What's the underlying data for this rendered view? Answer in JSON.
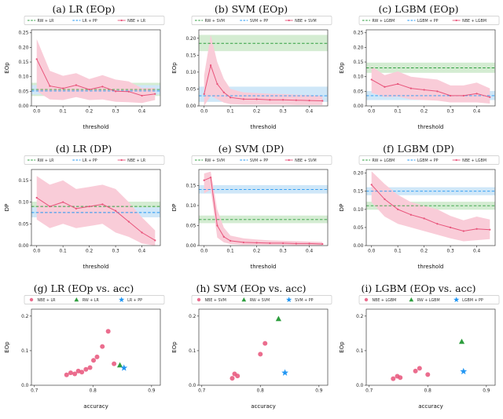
{
  "colors": {
    "green": "#2e9e3e",
    "green_band": "#d4ecd2",
    "blue": "#2196f3",
    "blue_band": "#cfe7f8",
    "pink": "#e8537a",
    "pink_band": "#f9ccd8"
  },
  "chart_data": [
    {
      "id": "a",
      "panel_type": "line",
      "title": "(a) LR (EOp)",
      "xlabel": "threshold",
      "ylabel": "EOp",
      "xlim": [
        -0.02,
        0.47
      ],
      "ylim": [
        0,
        0.26
      ],
      "xticks": [
        0.0,
        0.1,
        0.2,
        0.3,
        0.4
      ],
      "xtick_labels": [
        "0.0",
        "0.1",
        "0.2",
        "0.3",
        "0.4"
      ],
      "yticks": [
        0,
        0.05,
        0.1,
        0.15,
        0.2,
        0.25
      ],
      "ytick_labels": [
        "0.00",
        "0.05",
        "0.10",
        "0.15",
        "0.20",
        "0.25"
      ],
      "legend": [
        {
          "label": "RW + LR",
          "colorKey": "green",
          "kind": "dash"
        },
        {
          "label": "LR + PP",
          "colorKey": "blue",
          "kind": "dash"
        },
        {
          "label": "NBE + LR",
          "colorKey": "pink",
          "kind": "line"
        }
      ],
      "baselines": [
        {
          "name": "RW + LR",
          "value": 0.056,
          "band": [
            0.034,
            0.079
          ],
          "colorKey": "green"
        },
        {
          "name": "LR + PP",
          "value": 0.051,
          "band": [
            0.039,
            0.071
          ],
          "colorKey": "blue"
        }
      ],
      "nbe": {
        "name": "NBE + LR",
        "x": [
          0,
          0.05,
          0.1,
          0.15,
          0.2,
          0.25,
          0.3,
          0.35,
          0.4,
          0.45
        ],
        "y": [
          0.16,
          0.068,
          0.06,
          0.071,
          0.056,
          0.066,
          0.05,
          0.049,
          0.035,
          0.041
        ],
        "low": [
          0.05,
          0.022,
          0.02,
          0.03,
          0.02,
          0.022,
          0.014,
          0.013,
          0.01,
          0.02
        ],
        "high": [
          0.228,
          0.12,
          0.103,
          0.112,
          0.092,
          0.105,
          0.09,
          0.084,
          0.061,
          0.062
        ]
      }
    },
    {
      "id": "b",
      "panel_type": "line",
      "title": "(b) SVM (EOp)",
      "xlabel": "threshold",
      "ylabel": "EOp",
      "xlim": [
        -0.02,
        0.47
      ],
      "ylim": [
        0,
        0.225
      ],
      "xticks": [
        0.0,
        0.1,
        0.2,
        0.3,
        0.4
      ],
      "xtick_labels": [
        "0.0",
        "0.1",
        "0.2",
        "0.3",
        "0.4"
      ],
      "yticks": [
        0,
        0.05,
        0.1,
        0.15,
        0.2
      ],
      "ytick_labels": [
        "0.00",
        "0.05",
        "0.10",
        "0.15",
        "0.20"
      ],
      "legend": [
        {
          "label": "RW + SVM",
          "colorKey": "green",
          "kind": "dash"
        },
        {
          "label": "SVM + PP",
          "colorKey": "blue",
          "kind": "dash"
        },
        {
          "label": "NBE + SVM",
          "colorKey": "pink",
          "kind": "line"
        }
      ],
      "baselines": [
        {
          "name": "RW + SVM",
          "value": 0.185,
          "band": [
            0.162,
            0.21
          ],
          "colorKey": "green"
        },
        {
          "name": "SVM + PP",
          "value": 0.03,
          "band": [
            0.012,
            0.057
          ],
          "colorKey": "blue"
        }
      ],
      "nbe": {
        "name": "NBE + SVM",
        "x": [
          0,
          0.025,
          0.05,
          0.075,
          0.1,
          0.15,
          0.2,
          0.25,
          0.3,
          0.35,
          0.4,
          0.45
        ],
        "y": [
          0.035,
          0.12,
          0.065,
          0.04,
          0.025,
          0.02,
          0.02,
          0.018,
          0.018,
          0.017,
          0.016,
          0.015
        ],
        "low": [
          0,
          0.03,
          0.02,
          0.01,
          0.005,
          0.004,
          0.004,
          0.004,
          0.004,
          0.003,
          0.003,
          0.003
        ],
        "high": [
          0.09,
          0.21,
          0.13,
          0.08,
          0.05,
          0.04,
          0.038,
          0.036,
          0.035,
          0.033,
          0.032,
          0.03
        ]
      }
    },
    {
      "id": "c",
      "panel_type": "line",
      "title": "(c) LGBM (EOp)",
      "xlabel": "threshold",
      "ylabel": "EOp",
      "xlim": [
        -0.02,
        0.47
      ],
      "ylim": [
        0,
        0.26
      ],
      "xticks": [
        0.0,
        0.1,
        0.2,
        0.3,
        0.4
      ],
      "xtick_labels": [
        "0.0",
        "0.1",
        "0.2",
        "0.3",
        "0.4"
      ],
      "yticks": [
        0,
        0.05,
        0.1,
        0.15,
        0.2,
        0.25
      ],
      "ytick_labels": [
        "0.00",
        "0.05",
        "0.10",
        "0.15",
        "0.20",
        "0.25"
      ],
      "legend": [
        {
          "label": "RW + LGBM",
          "colorKey": "green",
          "kind": "dash"
        },
        {
          "label": "LGBM + PP",
          "colorKey": "blue",
          "kind": "dash"
        },
        {
          "label": "NBE + LGBM",
          "colorKey": "pink",
          "kind": "line"
        }
      ],
      "baselines": [
        {
          "name": "RW + LGBM",
          "value": 0.13,
          "band": [
            0.113,
            0.148
          ],
          "colorKey": "green"
        },
        {
          "name": "LGBM + PP",
          "value": 0.035,
          "band": [
            0.02,
            0.051
          ],
          "colorKey": "blue"
        }
      ],
      "nbe": {
        "name": "NBE + LGBM",
        "x": [
          0,
          0.05,
          0.1,
          0.15,
          0.2,
          0.25,
          0.3,
          0.35,
          0.4,
          0.45
        ],
        "y": [
          0.09,
          0.065,
          0.075,
          0.06,
          0.055,
          0.05,
          0.035,
          0.035,
          0.042,
          0.03
        ],
        "low": [
          0.045,
          0.03,
          0.032,
          0.022,
          0.02,
          0.018,
          0.012,
          0.012,
          0.012,
          0.008
        ],
        "high": [
          0.135,
          0.105,
          0.118,
          0.1,
          0.095,
          0.09,
          0.07,
          0.07,
          0.08,
          0.06
        ]
      }
    },
    {
      "id": "d",
      "panel_type": "line",
      "title": "(d) LR (DP)",
      "xlabel": "threshold",
      "ylabel": "DP",
      "xlim": [
        -0.02,
        0.47
      ],
      "ylim": [
        0,
        0.175
      ],
      "xticks": [
        0.0,
        0.1,
        0.2,
        0.3,
        0.4
      ],
      "xtick_labels": [
        "0.0",
        "0.1",
        "0.2",
        "0.3",
        "0.4"
      ],
      "yticks": [
        0,
        0.05,
        0.1,
        0.15
      ],
      "ytick_labels": [
        "0.00",
        "0.05",
        "0.10",
        "0.15"
      ],
      "legend": [
        {
          "label": "RW + LR",
          "colorKey": "green",
          "kind": "dash"
        },
        {
          "label": "LR + PP",
          "colorKey": "blue",
          "kind": "dash"
        },
        {
          "label": "NBE + LR",
          "colorKey": "pink",
          "kind": "line"
        }
      ],
      "baselines": [
        {
          "name": "RW + LR",
          "value": 0.09,
          "band": [
            0.079,
            0.101
          ],
          "colorKey": "green"
        },
        {
          "name": "LR + PP",
          "value": 0.076,
          "band": [
            0.065,
            0.088
          ],
          "colorKey": "blue"
        }
      ],
      "nbe": {
        "name": "NBE + LR",
        "x": [
          0,
          0.05,
          0.1,
          0.15,
          0.2,
          0.25,
          0.3,
          0.35,
          0.4,
          0.45
        ],
        "y": [
          0.11,
          0.09,
          0.1,
          0.085,
          0.09,
          0.095,
          0.08,
          0.055,
          0.03,
          0.012
        ],
        "low": [
          0.06,
          0.04,
          0.05,
          0.04,
          0.045,
          0.05,
          0.03,
          0.02,
          0.005,
          0
        ],
        "high": [
          0.16,
          0.14,
          0.15,
          0.13,
          0.135,
          0.14,
          0.13,
          0.1,
          0.065,
          0.035
        ]
      }
    },
    {
      "id": "e",
      "panel_type": "line",
      "title": "(e) SVM (DP)",
      "xlabel": "threshold",
      "ylabel": "DP",
      "xlim": [
        -0.02,
        0.47
      ],
      "ylim": [
        0,
        0.19
      ],
      "xticks": [
        0.0,
        0.1,
        0.2,
        0.3,
        0.4
      ],
      "xtick_labels": [
        "0.0",
        "0.1",
        "0.2",
        "0.3",
        "0.4"
      ],
      "yticks": [
        0,
        0.05,
        0.1,
        0.15
      ],
      "ytick_labels": [
        "0.00",
        "0.05",
        "0.10",
        "0.15"
      ],
      "legend": [
        {
          "label": "RW + SVM",
          "colorKey": "green",
          "kind": "dash"
        },
        {
          "label": "SVM + PP",
          "colorKey": "blue",
          "kind": "dash"
        },
        {
          "label": "NBE + SVM",
          "colorKey": "pink",
          "kind": "line"
        }
      ],
      "baselines": [
        {
          "name": "RW + SVM",
          "value": 0.065,
          "band": [
            0.056,
            0.075
          ],
          "colorKey": "green"
        },
        {
          "name": "SVM + PP",
          "value": 0.14,
          "band": [
            0.13,
            0.151
          ],
          "colorKey": "blue"
        }
      ],
      "nbe": {
        "name": "NBE + SVM",
        "x": [
          0,
          0.025,
          0.05,
          0.075,
          0.1,
          0.15,
          0.2,
          0.25,
          0.3,
          0.35,
          0.4,
          0.45
        ],
        "y": [
          0.163,
          0.17,
          0.05,
          0.022,
          0.012,
          0.008,
          0.007,
          0.006,
          0.006,
          0.005,
          0.005,
          0.004
        ],
        "low": [
          0.13,
          0.14,
          0.02,
          0.008,
          0.004,
          0.002,
          0.002,
          0.002,
          0.002,
          0.001,
          0.001,
          0.001
        ],
        "high": [
          0.18,
          0.185,
          0.09,
          0.045,
          0.025,
          0.018,
          0.015,
          0.013,
          0.012,
          0.011,
          0.01,
          0.009
        ]
      }
    },
    {
      "id": "f",
      "panel_type": "line",
      "title": "(f) LGBM (DP)",
      "xlabel": "threshold",
      "ylabel": "DP",
      "xlim": [
        -0.02,
        0.47
      ],
      "ylim": [
        0,
        0.21
      ],
      "xticks": [
        0.0,
        0.1,
        0.2,
        0.3,
        0.4
      ],
      "xtick_labels": [
        "0.0",
        "0.1",
        "0.2",
        "0.3",
        "0.4"
      ],
      "yticks": [
        0,
        0.05,
        0.1,
        0.15,
        0.2
      ],
      "ytick_labels": [
        "0.00",
        "0.05",
        "0.10",
        "0.15",
        "0.20"
      ],
      "legend": [
        {
          "label": "RW + LGBM",
          "colorKey": "green",
          "kind": "dash"
        },
        {
          "label": "LGBM + PP",
          "colorKey": "blue",
          "kind": "dash"
        },
        {
          "label": "NBE + LGBM",
          "colorKey": "pink",
          "kind": "line"
        }
      ],
      "baselines": [
        {
          "name": "RW + LGBM",
          "value": 0.11,
          "band": [
            0.099,
            0.121
          ],
          "colorKey": "green"
        },
        {
          "name": "LGBM + PP",
          "value": 0.15,
          "band": [
            0.139,
            0.161
          ],
          "colorKey": "blue"
        }
      ],
      "nbe": {
        "name": "NBE + LGBM",
        "x": [
          0,
          0.05,
          0.1,
          0.15,
          0.2,
          0.25,
          0.3,
          0.35,
          0.4,
          0.45
        ],
        "y": [
          0.168,
          0.128,
          0.1,
          0.085,
          0.075,
          0.06,
          0.05,
          0.04,
          0.046,
          0.044
        ],
        "low": [
          0.12,
          0.08,
          0.06,
          0.05,
          0.04,
          0.03,
          0.02,
          0.012,
          0.015,
          0.018
        ],
        "high": [
          0.205,
          0.17,
          0.14,
          0.12,
          0.11,
          0.1,
          0.082,
          0.07,
          0.08,
          0.072
        ]
      }
    },
    {
      "id": "g",
      "panel_type": "scatter",
      "title": "(g) LR (EOp vs. acc)",
      "xlabel": "accuracy",
      "ylabel": "EOp",
      "xlim": [
        0.695,
        0.915
      ],
      "ylim": [
        0,
        0.22
      ],
      "xticks": [
        0.7,
        0.8,
        0.9
      ],
      "xtick_labels": [
        "0.7",
        "0.8",
        "0.9"
      ],
      "yticks": [
        0,
        0.1,
        0.2
      ],
      "ytick_labels": [
        "0.0",
        "0.1",
        "0.2"
      ],
      "legend": [
        {
          "label": "NBE + LR",
          "colorKey": "pink",
          "kind": "circle"
        },
        {
          "label": "RW + LR",
          "colorKey": "green",
          "kind": "triangle"
        },
        {
          "label": "LR + PP",
          "colorKey": "blue",
          "kind": "star"
        }
      ],
      "series": [
        {
          "name": "NBE + LR",
          "marker": "circle",
          "colorKey": "pink",
          "points": [
            [
              0.755,
              0.03
            ],
            [
              0.762,
              0.036
            ],
            [
              0.769,
              0.033
            ],
            [
              0.775,
              0.041
            ],
            [
              0.781,
              0.038
            ],
            [
              0.788,
              0.046
            ],
            [
              0.795,
              0.051
            ],
            [
              0.801,
              0.072
            ],
            [
              0.807,
              0.082
            ],
            [
              0.816,
              0.112
            ],
            [
              0.826,
              0.156
            ],
            [
              0.836,
              0.062
            ]
          ]
        },
        {
          "name": "RW + LR",
          "marker": "triangle",
          "colorKey": "green",
          "points": [
            [
              0.846,
              0.058
            ]
          ]
        },
        {
          "name": "LR + PP",
          "marker": "star",
          "colorKey": "blue",
          "points": [
            [
              0.853,
              0.05
            ]
          ]
        }
      ]
    },
    {
      "id": "h",
      "panel_type": "scatter",
      "title": "(h) SVM (EOp vs. acc)",
      "xlabel": "accuracy",
      "ylabel": "EOp",
      "xlim": [
        0.695,
        0.915
      ],
      "ylim": [
        0,
        0.22
      ],
      "xticks": [
        0.7,
        0.8,
        0.9
      ],
      "xtick_labels": [
        "0.7",
        "0.8",
        "0.9"
      ],
      "yticks": [
        0,
        0.1,
        0.2
      ],
      "ytick_labels": [
        "0.0",
        "0.1",
        "0.2"
      ],
      "legend": [
        {
          "label": "NBE + SVM",
          "colorKey": "pink",
          "kind": "circle"
        },
        {
          "label": "RW + SVM",
          "colorKey": "green",
          "kind": "triangle"
        },
        {
          "label": "SVM + PP",
          "colorKey": "blue",
          "kind": "star"
        }
      ],
      "series": [
        {
          "name": "NBE + SVM",
          "marker": "circle",
          "colorKey": "pink",
          "points": [
            [
              0.752,
              0.02
            ],
            [
              0.756,
              0.033
            ],
            [
              0.761,
              0.027
            ],
            [
              0.8,
              0.09
            ],
            [
              0.808,
              0.121
            ]
          ]
        },
        {
          "name": "RW + SVM",
          "marker": "triangle",
          "colorKey": "green",
          "points": [
            [
              0.831,
              0.192
            ]
          ]
        },
        {
          "name": "SVM + PP",
          "marker": "star",
          "colorKey": "blue",
          "points": [
            [
              0.842,
              0.036
            ]
          ]
        }
      ]
    },
    {
      "id": "i",
      "panel_type": "scatter",
      "title": "(i) LGBM (EOp vs. acc)",
      "xlabel": "accuracy",
      "ylabel": "EOp",
      "xlim": [
        0.695,
        0.915
      ],
      "ylim": [
        0,
        0.22
      ],
      "xticks": [
        0.7,
        0.8,
        0.9
      ],
      "xtick_labels": [
        "0.7",
        "0.8",
        "0.9"
      ],
      "yticks": [
        0,
        0.1,
        0.2
      ],
      "ytick_labels": [
        "0.0",
        "0.1",
        "0.2"
      ],
      "legend": [
        {
          "label": "NBE + LGBM",
          "colorKey": "pink",
          "kind": "circle"
        },
        {
          "label": "RW + LGBM",
          "colorKey": "green",
          "kind": "triangle"
        },
        {
          "label": "LGBM + PP",
          "colorKey": "blue",
          "kind": "star"
        }
      ],
      "series": [
        {
          "name": "NBE + LGBM",
          "marker": "circle",
          "colorKey": "pink",
          "points": [
            [
              0.741,
              0.019
            ],
            [
              0.748,
              0.026
            ],
            [
              0.753,
              0.022
            ],
            [
              0.779,
              0.041
            ],
            [
              0.786,
              0.049
            ],
            [
              0.8,
              0.031
            ]
          ]
        },
        {
          "name": "RW + LGBM",
          "marker": "triangle",
          "colorKey": "green",
          "points": [
            [
              0.858,
              0.126
            ]
          ]
        },
        {
          "name": "LGBM + PP",
          "marker": "star",
          "colorKey": "blue",
          "points": [
            [
              0.861,
              0.04
            ]
          ]
        }
      ]
    }
  ]
}
